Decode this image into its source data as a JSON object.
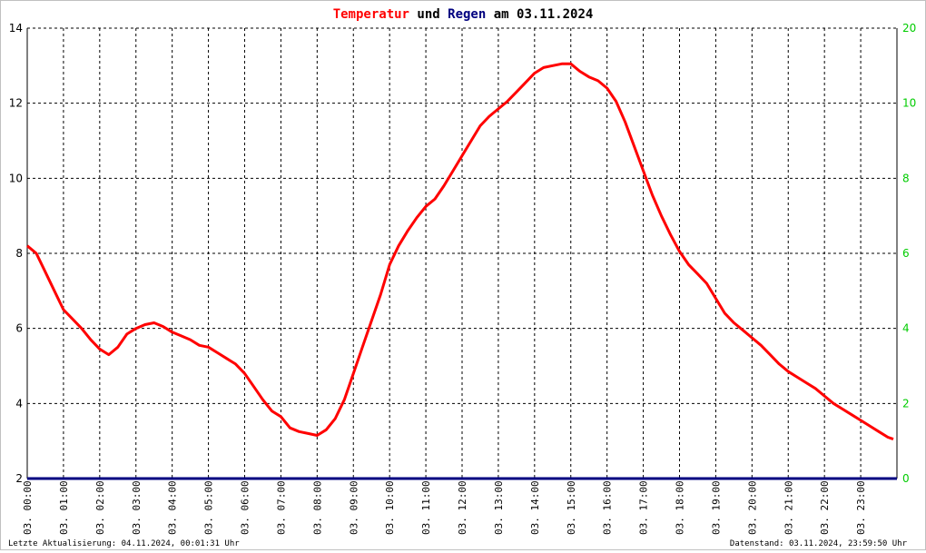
{
  "title": {
    "part1": "Temperatur",
    "part2": " und ",
    "part3": "Regen",
    "part4": " am 03.11.2024",
    "color1": "#ff0000",
    "color3": "#000080",
    "color_rest": "#000000"
  },
  "footer": {
    "left": "Letzte Aktualisierung: 04.11.2024, 00:01:31 Uhr",
    "right": "Datenstand: 03.11.2024, 23:59:50 Uhr"
  },
  "chart_data": {
    "type": "line",
    "title": "Temperatur und Regen am 03.11.2024",
    "x_tick_labels": [
      "03. 00:00",
      "03. 01:00",
      "03. 02:00",
      "03. 03:00",
      "03. 04:00",
      "03. 05:00",
      "03. 06:00",
      "03. 07:00",
      "03. 08:00",
      "03. 09:00",
      "03. 10:00",
      "03. 11:00",
      "03. 12:00",
      "03. 13:00",
      "03. 14:00",
      "03. 15:00",
      "03. 16:00",
      "03. 17:00",
      "03. 18:00",
      "03. 19:00",
      "03. 20:00",
      "03. 21:00",
      "03. 22:00",
      "03. 23:00"
    ],
    "xlim": [
      0,
      24
    ],
    "y_left": {
      "lim": [
        2,
        14
      ],
      "ticks": [
        2,
        4,
        6,
        8,
        10,
        12,
        14
      ],
      "color": "#000000"
    },
    "y_right": {
      "lim": [
        0,
        20
      ],
      "ticks": [
        0,
        2,
        4,
        6,
        8,
        10,
        20
      ],
      "tick_values_on_left_scale": [
        2,
        4,
        6,
        8,
        10,
        12,
        14
      ],
      "color": "#00cc00"
    },
    "grid": true,
    "series": [
      {
        "name": "Temperatur",
        "color": "#ff0000",
        "axis": "left",
        "x": [
          0,
          0.25,
          0.5,
          0.75,
          1.0,
          1.25,
          1.5,
          1.75,
          2.0,
          2.25,
          2.5,
          2.75,
          3.0,
          3.25,
          3.5,
          3.75,
          4.0,
          4.25,
          4.5,
          4.75,
          5.0,
          5.25,
          5.5,
          5.75,
          6.0,
          6.25,
          6.5,
          6.75,
          7.0,
          7.25,
          7.5,
          7.75,
          8.0,
          8.25,
          8.5,
          8.75,
          9.0,
          9.25,
          9.5,
          9.75,
          10.0,
          10.25,
          10.5,
          10.75,
          11.0,
          11.25,
          11.5,
          11.75,
          12.0,
          12.25,
          12.5,
          12.75,
          13.0,
          13.25,
          13.5,
          13.75,
          14.0,
          14.25,
          14.5,
          14.75,
          15.0,
          15.25,
          15.5,
          15.75,
          16.0,
          16.25,
          16.5,
          16.75,
          17.0,
          17.25,
          17.5,
          17.75,
          18.0,
          18.25,
          18.5,
          18.75,
          19.0,
          19.25,
          19.5,
          19.75,
          20.0,
          20.25,
          20.5,
          20.75,
          21.0,
          21.25,
          21.5,
          21.75,
          22.0,
          22.25,
          22.5,
          22.75,
          23.0,
          23.25,
          23.5,
          23.75,
          23.9
        ],
        "values": [
          8.2,
          8.0,
          7.5,
          7.0,
          6.5,
          6.25,
          6.0,
          5.7,
          5.45,
          5.3,
          5.5,
          5.85,
          6.0,
          6.1,
          6.15,
          6.05,
          5.9,
          5.8,
          5.7,
          5.55,
          5.5,
          5.35,
          5.2,
          5.05,
          4.8,
          4.45,
          4.1,
          3.8,
          3.65,
          3.35,
          3.25,
          3.2,
          3.15,
          3.3,
          3.6,
          4.1,
          4.8,
          5.5,
          6.2,
          6.9,
          7.7,
          8.2,
          8.6,
          8.95,
          9.25,
          9.45,
          9.8,
          10.2,
          10.6,
          11.0,
          11.4,
          11.65,
          11.85,
          12.05,
          12.3,
          12.55,
          12.8,
          12.95,
          13.0,
          13.05,
          13.05,
          12.85,
          12.7,
          12.6,
          12.4,
          12.05,
          11.5,
          10.85,
          10.2,
          9.55,
          9.0,
          8.5,
          8.05,
          7.7,
          7.45,
          7.2,
          6.8,
          6.4,
          6.15,
          5.95,
          5.75,
          5.55,
          5.3,
          5.05,
          4.85,
          4.7,
          4.55,
          4.4,
          4.2,
          4.0,
          3.85,
          3.7,
          3.55,
          3.4,
          3.25,
          3.1,
          3.05
        ]
      },
      {
        "name": "Regen",
        "color": "#000080",
        "axis": "right",
        "x": [
          0,
          24
        ],
        "values": [
          0,
          0
        ]
      }
    ]
  }
}
